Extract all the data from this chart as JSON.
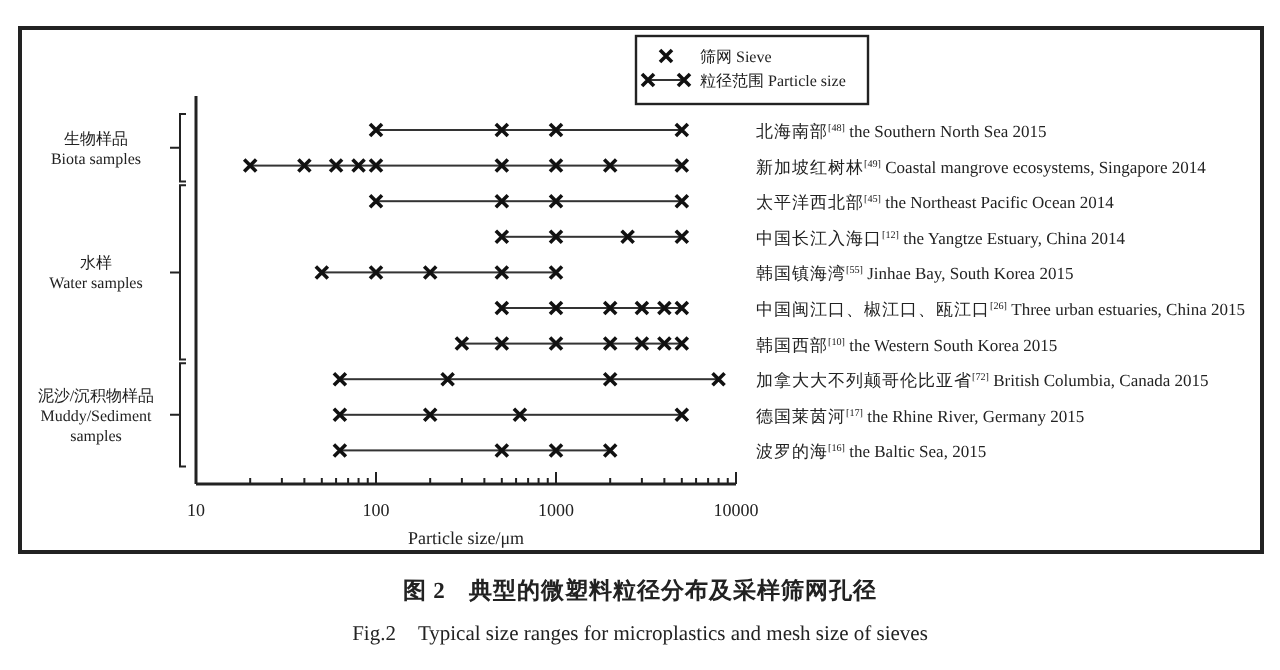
{
  "chart_data": {
    "type": "scatter",
    "orientation": "horizontal",
    "title": "图 2　典型的微塑料粒径分布及采样筛网孔径",
    "subtitle": "Fig.2　Typical size ranges for microplastics and mesh size of sieves",
    "xlabel": "Particle size/μm",
    "log": "x",
    "xlim": [
      10,
      10000
    ],
    "xticks": [
      10,
      100,
      1000,
      10000
    ],
    "marker": "cross",
    "legend": "top",
    "grid": false,
    "categories": [
      "北海南部$^{[48]}$ the Southern North Sea 2015",
      "新加坡红树林$^{[49]}$ Coastal mangrove ecosystems, Singapore 2014",
      "太平洋西北部$^{[45]}$ the Northeast Pacific Ocean 2014",
      "中国长江入海口$^{[12]}$ the Yangtze Estuary, China 2014",
      "韩国镇海湾$^{[55]}$ Jinhae Bay, South Korea 2015",
      "中国闽江口、椒江口、瓯江口$^{[26]}$ Three urban estuaries, China 2015",
      "韩国西部$^{[10]}$ the Western South Korea 2015",
      "加拿大大不列颠哥伦比亚省$^{[72]}$ British Columbia, Canada 2015",
      "德国莱茵河$^{[17]}$ the Rhine River, Germany 2015",
      "波罗的海$^{[16]}$ the Baltic Sea, 2015"
    ],
    "series": [
      {
        "name": "粒径范围 Particle size",
        "type": "bar",
        "base": [
          100,
          20,
          100,
          500,
          50,
          500,
          300,
          63,
          63,
          63
        ],
        "values": [
          4900,
          4980,
          4900,
          4500,
          950,
          4500,
          4700,
          7937,
          4937,
          1937
        ]
      },
      {
        "name": "筛网 Sieve",
        "values": [
          100,
          20,
          100,
          500,
          50,
          500,
          300,
          63,
          63,
          63
        ]
      },
      {
        "values": [
          500,
          40,
          500,
          1000,
          100,
          1000,
          500,
          250,
          200,
          500
        ]
      },
      {
        "values": [
          1000,
          60,
          1000,
          2500,
          200,
          2000,
          1000,
          2000,
          630,
          1000
        ]
      },
      {
        "values": [
          5000,
          80,
          5000,
          5000,
          500,
          3000,
          2000,
          8000,
          5000,
          2000
        ]
      },
      {
        "values": [
          null,
          100,
          null,
          null,
          1000,
          4000,
          3000,
          null,
          null,
          null
        ]
      },
      {
        "values": [
          null,
          500,
          null,
          null,
          null,
          5000,
          4000,
          null,
          null,
          null
        ]
      },
      {
        "values": [
          null,
          1000,
          null,
          null,
          null,
          null,
          5000,
          null,
          null,
          null
        ]
      },
      {
        "values": [
          null,
          2000,
          null,
          null,
          null,
          null,
          null,
          null,
          null,
          null
        ]
      },
      {
        "values": [
          null,
          5000,
          null,
          null,
          null,
          null,
          null,
          null,
          null,
          null
        ]
      }
    ],
    "annotations": [
      "生物样品\nBiota samples",
      "水样\nWater samples",
      "泥沙/沉积物样品\nMuddy/Sediment\nsamples"
    ]
  }
}
